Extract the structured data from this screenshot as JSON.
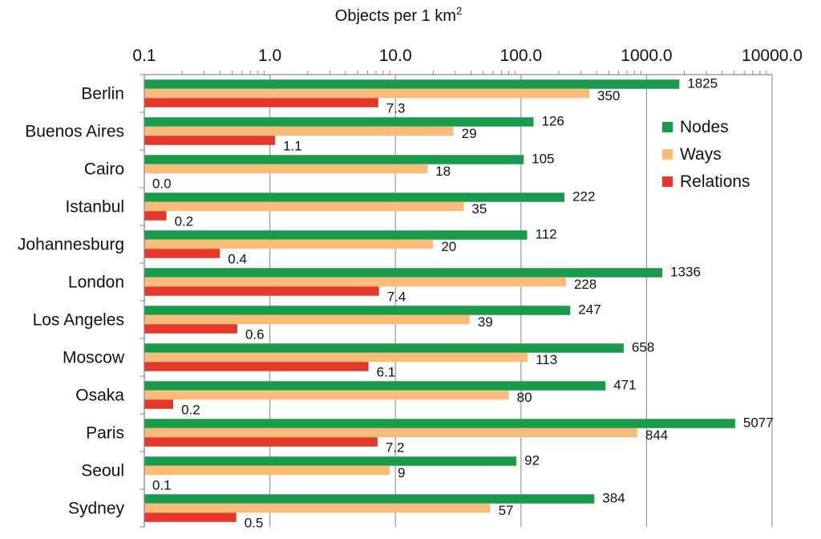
{
  "chart_data": {
    "type": "bar",
    "orientation": "horizontal",
    "title": "",
    "xlabel": "Objects per 1 km",
    "xlabel_superscript": "2",
    "ylabel": "",
    "x_scale": "log",
    "xlim": [
      0.1,
      10000
    ],
    "x_ticks": [
      0.1,
      1,
      10,
      100,
      1000,
      10000
    ],
    "x_tick_labels": [
      "0.1",
      "1.0",
      "10.0",
      "100.0",
      "1000.0",
      "10000.0"
    ],
    "grid": true,
    "legend_position": "right",
    "categories": [
      "Berlin",
      "Buenos Aires",
      "Cairo",
      "Istanbul",
      "Johannesburg",
      "London",
      "Los Angeles",
      "Moscow",
      "Osaka",
      "Paris",
      "Seoul",
      "Sydney"
    ],
    "series": [
      {
        "name": "Nodes",
        "color": "#1a9b4b",
        "values": [
          1825,
          126,
          105,
          222,
          112,
          1336,
          247,
          658,
          471,
          5077,
          92,
          384
        ],
        "labels": [
          "1825",
          "126",
          "105",
          "222",
          "112",
          "1336",
          "247",
          "658",
          "471",
          "5077",
          "92",
          "384"
        ]
      },
      {
        "name": "Ways",
        "color": "#fbbc79",
        "values": [
          350,
          29,
          18,
          35,
          20,
          228,
          39,
          113,
          80,
          844,
          9,
          57
        ],
        "labels": [
          "350",
          "29",
          "18",
          "35",
          "20",
          "228",
          "39",
          "113",
          "80",
          "844",
          "9",
          "57"
        ]
      },
      {
        "name": "Relations",
        "color": "#e5382a",
        "values": [
          7.3,
          1.1,
          0.0,
          0.15,
          0.4,
          7.4,
          0.55,
          6.1,
          0.17,
          7.2,
          0.1,
          0.54
        ],
        "labels": [
          "7.3",
          "1.1",
          "0.0",
          "0.2",
          "0.4",
          "7.4",
          "0.6",
          "6.1",
          "0.2",
          "7.2",
          "0.1",
          "0.5"
        ]
      }
    ]
  }
}
